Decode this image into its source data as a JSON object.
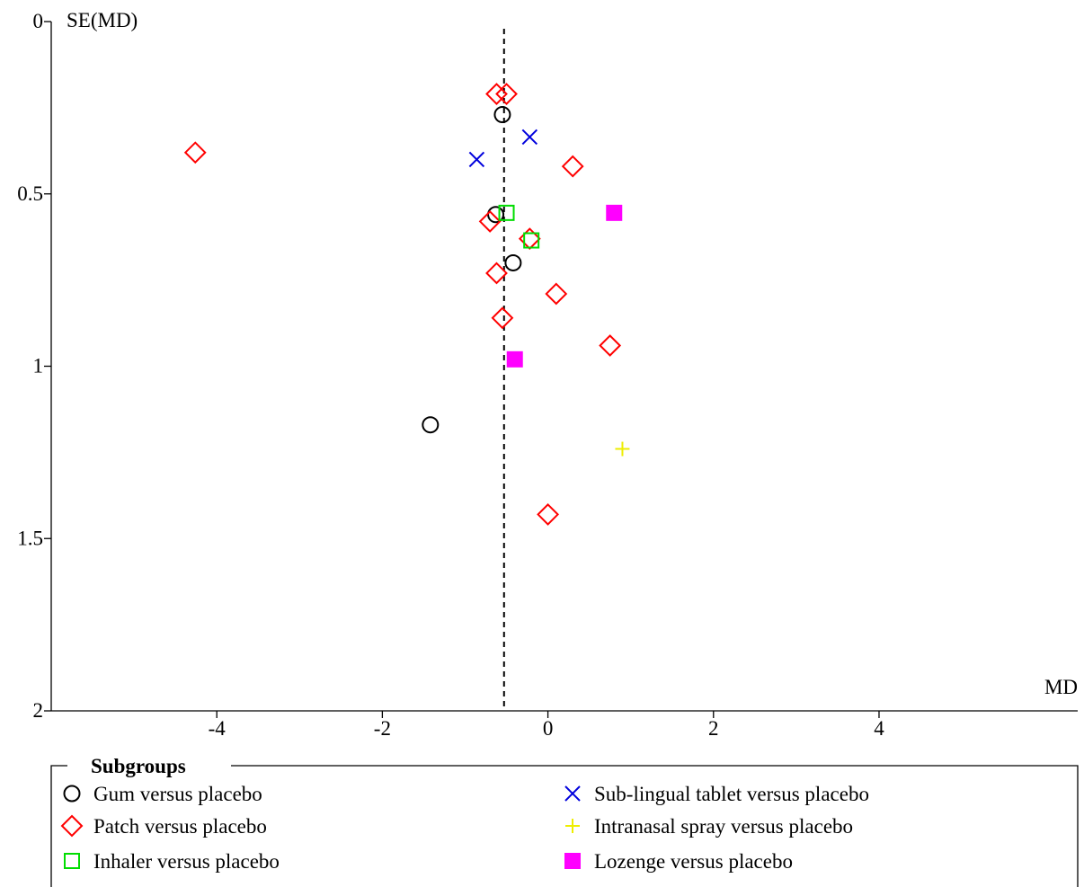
{
  "chart_data": {
    "type": "scatter",
    "subtype": "funnel plot",
    "xlabel": "MD",
    "ylabel": "SE(MD)",
    "xlim": [
      -6.0,
      6.4
    ],
    "ylim": [
      0,
      2
    ],
    "y_inverted": true,
    "x_ticks": [
      -4,
      -2,
      0,
      2,
      4
    ],
    "x_tick_labels": [
      "-4",
      "-2",
      "0",
      "2",
      "4"
    ],
    "y_ticks": [
      0,
      0.5,
      1,
      1.5,
      2
    ],
    "y_tick_labels": [
      "0",
      "0.5",
      "1",
      "1.5",
      "2"
    ],
    "reference_line": {
      "x": -0.53,
      "style": "dashed"
    },
    "legend": {
      "title": "Subgroups",
      "placement": "bottom"
    },
    "series": [
      {
        "name": "Gum versus placebo",
        "marker": "circle-open",
        "color": "#000000",
        "points": [
          {
            "x": -0.55,
            "y": 0.27
          },
          {
            "x": -0.63,
            "y": 0.56
          },
          {
            "x": -0.42,
            "y": 0.7
          },
          {
            "x": -1.42,
            "y": 1.17
          }
        ]
      },
      {
        "name": "Patch versus placebo",
        "marker": "diamond-open",
        "color": "#ff0000",
        "points": [
          {
            "x": -0.62,
            "y": 0.21
          },
          {
            "x": -0.5,
            "y": 0.21
          },
          {
            "x": -4.26,
            "y": 0.38
          },
          {
            "x": 0.3,
            "y": 0.42
          },
          {
            "x": -0.7,
            "y": 0.58
          },
          {
            "x": -0.22,
            "y": 0.63
          },
          {
            "x": -0.62,
            "y": 0.73
          },
          {
            "x": 0.1,
            "y": 0.79
          },
          {
            "x": -0.55,
            "y": 0.86
          },
          {
            "x": 0.75,
            "y": 0.94
          },
          {
            "x": 0.0,
            "y": 1.43
          }
        ]
      },
      {
        "name": "Inhaler versus placebo",
        "marker": "square-open",
        "color": "#00dd00",
        "points": [
          {
            "x": -0.5,
            "y": 0.555
          },
          {
            "x": -0.2,
            "y": 0.635
          }
        ]
      },
      {
        "name": "Sub-lingual tablet versus placebo",
        "marker": "x",
        "color": "#0000dd",
        "points": [
          {
            "x": -0.22,
            "y": 0.335
          },
          {
            "x": -0.86,
            "y": 0.4
          }
        ]
      },
      {
        "name": "Intranasal spray versus placebo",
        "marker": "plus",
        "color": "#eeee00",
        "points": [
          {
            "x": 0.9,
            "y": 1.24
          }
        ]
      },
      {
        "name": "Lozenge versus placebo",
        "marker": "square-filled",
        "color": "#ff00ff",
        "points": [
          {
            "x": 0.8,
            "y": 0.555
          },
          {
            "x": -0.4,
            "y": 0.98
          }
        ]
      }
    ]
  }
}
